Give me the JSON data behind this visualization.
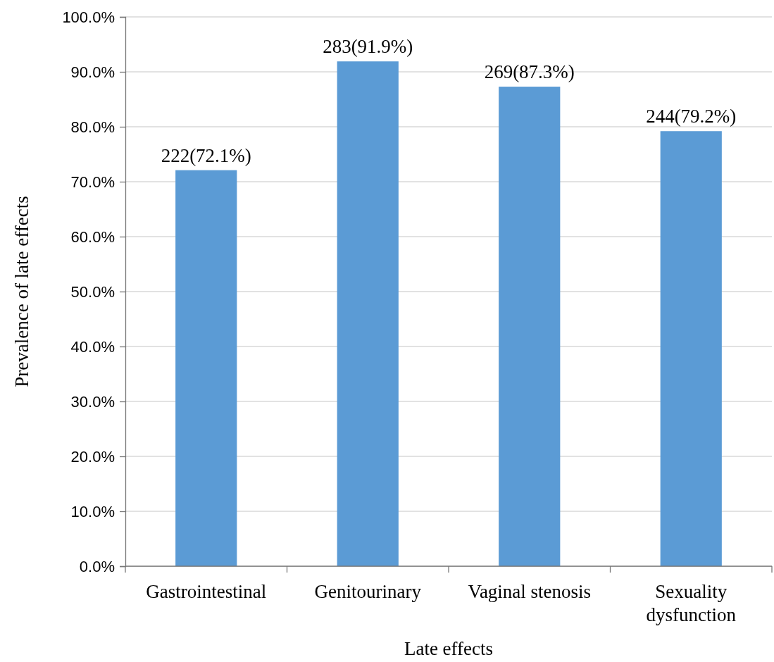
{
  "chart_data": {
    "type": "bar",
    "xlabel": "Late effects",
    "ylabel": "Prevalence of late effects",
    "categories": [
      "Gastrointestinal",
      "Genitourinary",
      "Vaginal stenosis",
      "Sexuality dysfunction"
    ],
    "values": [
      72.1,
      91.9,
      87.3,
      79.2
    ],
    "value_labels": [
      "222(72.1%)",
      "283(91.9%)",
      "269(87.3%)",
      "244(79.2%)"
    ],
    "color": "#5b9bd5",
    "ylim": [
      0,
      100
    ],
    "yticks": [
      {
        "value": 0,
        "label": "0.0%"
      },
      {
        "value": 10,
        "label": "10.0%"
      },
      {
        "value": 20,
        "label": "20.0%"
      },
      {
        "value": 30,
        "label": "30.0%"
      },
      {
        "value": 40,
        "label": "40.0%"
      },
      {
        "value": 50,
        "label": "50.0%"
      },
      {
        "value": 60,
        "label": "60.0%"
      },
      {
        "value": 70,
        "label": "70.0%"
      },
      {
        "value": 80,
        "label": "80.0%"
      },
      {
        "value": 90,
        "label": "90.0%"
      },
      {
        "value": 100,
        "label": "100.0%"
      }
    ],
    "grid": "y",
    "legend": false
  }
}
